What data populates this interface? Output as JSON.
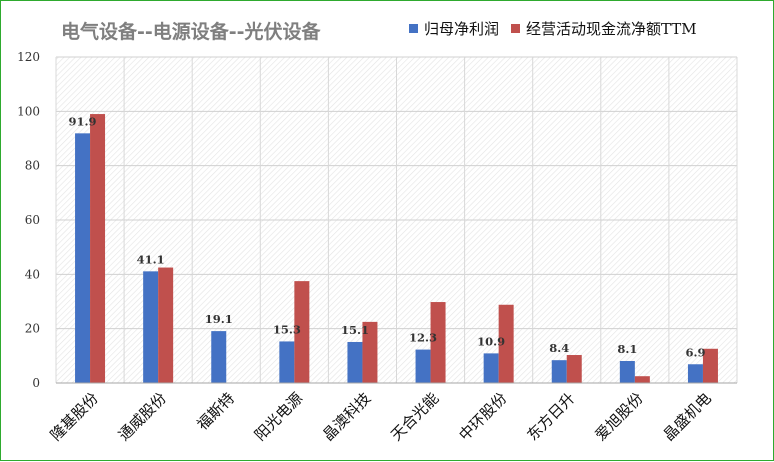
{
  "chart_data": {
    "type": "bar",
    "title": "电气设备--电源设备--光伏设备",
    "categories": [
      "隆基股份",
      "通威股份",
      "福斯特",
      "阳光电源",
      "晶澳科技",
      "天合光能",
      "中环股份",
      "东方日升",
      "爱旭股份",
      "晶盛机电"
    ],
    "series": [
      {
        "name": "归母净利润",
        "color": "#4472c4",
        "values": [
          91.9,
          41.1,
          19.1,
          15.3,
          15.1,
          12.3,
          10.9,
          8.4,
          8.1,
          6.9
        ],
        "labels": [
          "91.9",
          "41.1",
          "19.1",
          "15.3",
          "15.1",
          "12.3",
          "10.9",
          "8.4",
          "8.1",
          "6.9"
        ]
      },
      {
        "name": "经营活动现金流净额TTM",
        "color": "#c0504d",
        "values": [
          99,
          42.5,
          0,
          37.5,
          22.5,
          29.8,
          28.8,
          10.3,
          2.5,
          12.6
        ]
      }
    ],
    "yticks": [
      "0",
      "20",
      "40",
      "60",
      "80",
      "100",
      "120"
    ],
    "ylim": [
      0,
      120
    ],
    "xlabel": "",
    "ylabel": "",
    "grid": true,
    "legend_position": "top-right"
  }
}
